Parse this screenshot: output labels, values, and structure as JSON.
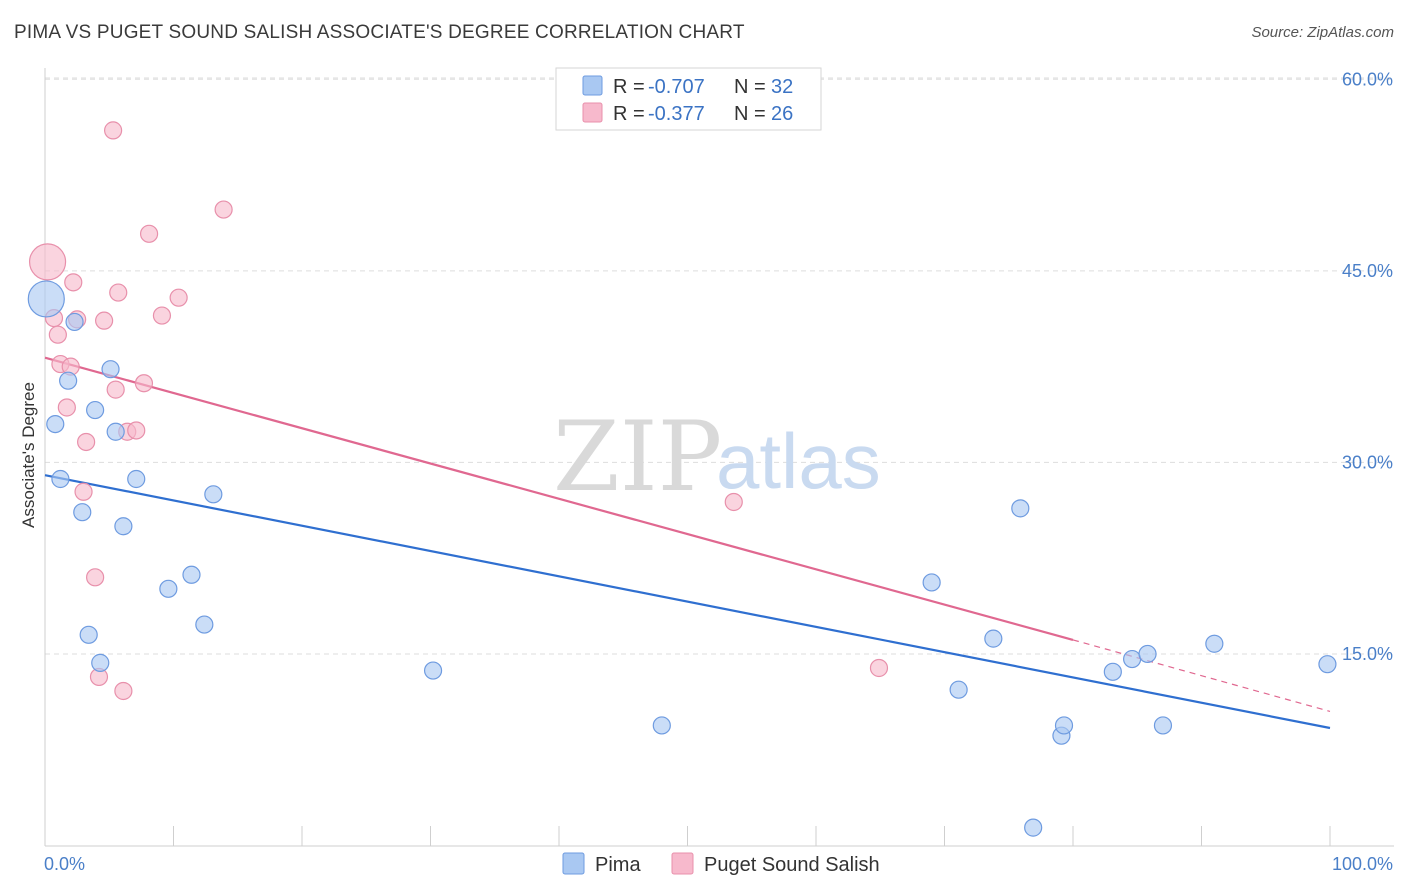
{
  "header": {
    "title": "PIMA VS PUGET SOUND SALISH ASSOCIATE'S DEGREE CORRELATION CHART",
    "source": "Source: ZipAtlas.com"
  },
  "watermark": {
    "zip": "ZIP",
    "atlas": "atlas"
  },
  "legend": {
    "rows": [
      {
        "r_label": "R =",
        "r_value": "-0.707",
        "n_label": "N =",
        "n_value": "32",
        "color": "#a9c8f2"
      },
      {
        "r_label": "R =",
        "r_value": "-0.377",
        "n_label": "N =",
        "n_value": "26",
        "color": "#f7b9cc"
      }
    ]
  },
  "bottom_legend": {
    "pima": "Pima",
    "salish": "Puget Sound Salish"
  },
  "colors": {
    "pima_fill": "#a9c8f2",
    "pima_stroke": "#6e9be0",
    "pima_line": "#2f6fd0",
    "salish_fill": "#f7b9cc",
    "salish_stroke": "#e890ab",
    "salish_line": "#e06890",
    "grid": "#dddddd",
    "tick_text": "#4a7fc8"
  },
  "chart_data": {
    "type": "scatter",
    "title": "PIMA VS PUGET SOUND SALISH ASSOCIATE'S DEGREE CORRELATION CHART",
    "xlabel": "",
    "ylabel": "Associate's Degree",
    "xlim": [
      0,
      100
    ],
    "ylim": [
      0,
      65
    ],
    "x_tick_labels": [
      "0.0%",
      "100.0%"
    ],
    "y_ticks": [
      15,
      30,
      45,
      60
    ],
    "y_tick_labels": [
      "15.0%",
      "30.0%",
      "45.0%",
      "60.0%"
    ],
    "grid": true,
    "legend_position": "top-center",
    "series": [
      {
        "name": "Pima",
        "r": -0.707,
        "n": 32,
        "trend": {
          "x": [
            0,
            100
          ],
          "y": [
            29.0,
            9.2
          ]
        },
        "points": [
          {
            "x": 0.1,
            "y": 42.8,
            "big": true
          },
          {
            "x": 0.8,
            "y": 33.0
          },
          {
            "x": 1.2,
            "y": 28.7
          },
          {
            "x": 1.8,
            "y": 36.4
          },
          {
            "x": 2.3,
            "y": 41.0
          },
          {
            "x": 2.9,
            "y": 26.1
          },
          {
            "x": 3.4,
            "y": 16.5
          },
          {
            "x": 3.9,
            "y": 34.1
          },
          {
            "x": 4.3,
            "y": 14.3
          },
          {
            "x": 5.1,
            "y": 37.3
          },
          {
            "x": 5.5,
            "y": 32.4
          },
          {
            "x": 6.1,
            "y": 25.0
          },
          {
            "x": 7.1,
            "y": 28.7
          },
          {
            "x": 9.6,
            "y": 20.1
          },
          {
            "x": 11.4,
            "y": 21.2
          },
          {
            "x": 12.4,
            "y": 17.3
          },
          {
            "x": 13.1,
            "y": 27.5
          },
          {
            "x": 30.2,
            "y": 13.7
          },
          {
            "x": 48.0,
            "y": 9.4
          },
          {
            "x": 69.0,
            "y": 20.6
          },
          {
            "x": 71.1,
            "y": 12.2
          },
          {
            "x": 73.8,
            "y": 16.2
          },
          {
            "x": 75.9,
            "y": 26.4
          },
          {
            "x": 76.9,
            "y": 1.4
          },
          {
            "x": 79.1,
            "y": 8.6
          },
          {
            "x": 79.3,
            "y": 9.4
          },
          {
            "x": 83.1,
            "y": 13.6
          },
          {
            "x": 84.6,
            "y": 14.6
          },
          {
            "x": 85.8,
            "y": 15.0
          },
          {
            "x": 87.0,
            "y": 9.4
          },
          {
            "x": 91.0,
            "y": 15.8
          },
          {
            "x": 99.8,
            "y": 14.2
          }
        ]
      },
      {
        "name": "Puget Sound Salish",
        "r": -0.377,
        "n": 26,
        "trend": {
          "x": [
            0,
            80
          ],
          "y": [
            38.2,
            16.1
          ]
        },
        "trend_dashed": {
          "x": [
            80,
            100
          ],
          "y": [
            16.1,
            10.5
          ]
        },
        "points": [
          {
            "x": 0.2,
            "y": 45.7,
            "big": true
          },
          {
            "x": 0.7,
            "y": 41.3
          },
          {
            "x": 1.0,
            "y": 40.0
          },
          {
            "x": 1.2,
            "y": 37.7
          },
          {
            "x": 1.7,
            "y": 34.3
          },
          {
            "x": 2.0,
            "y": 37.5
          },
          {
            "x": 2.2,
            "y": 44.1
          },
          {
            "x": 2.5,
            "y": 41.2
          },
          {
            "x": 3.0,
            "y": 27.7
          },
          {
            "x": 3.2,
            "y": 31.6
          },
          {
            "x": 3.9,
            "y": 21.0
          },
          {
            "x": 4.2,
            "y": 13.2
          },
          {
            "x": 4.6,
            "y": 41.1
          },
          {
            "x": 5.3,
            "y": 56.0
          },
          {
            "x": 5.5,
            "y": 35.7
          },
          {
            "x": 5.7,
            "y": 43.3
          },
          {
            "x": 6.1,
            "y": 12.1
          },
          {
            "x": 6.4,
            "y": 32.4
          },
          {
            "x": 7.1,
            "y": 32.5
          },
          {
            "x": 7.7,
            "y": 36.2
          },
          {
            "x": 8.1,
            "y": 47.9
          },
          {
            "x": 9.1,
            "y": 41.5
          },
          {
            "x": 10.4,
            "y": 42.9
          },
          {
            "x": 13.9,
            "y": 49.8
          },
          {
            "x": 53.6,
            "y": 26.9
          },
          {
            "x": 64.9,
            "y": 13.9
          }
        ]
      }
    ]
  }
}
